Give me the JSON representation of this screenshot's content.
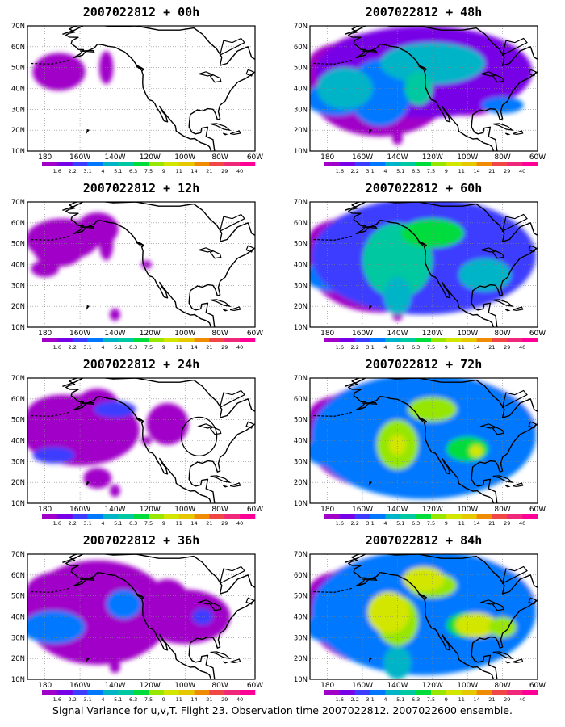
{
  "figure": {
    "caption": "Signal Variance for u,v,T. Flight 23. Observation time 2007022812. 2007022600 ensemble."
  },
  "map_axes": {
    "lat_labels": [
      "70N",
      "60N",
      "50N",
      "40N",
      "30N",
      "20N",
      "10N"
    ],
    "lon_labels": [
      "180",
      "160W",
      "140W",
      "120W",
      "100W",
      "80W",
      "60W"
    ]
  },
  "colorbar": {
    "levels": [
      "1.6",
      "2.2",
      "3.1",
      "4",
      "5.1",
      "6.3",
      "7.5",
      "9",
      "11",
      "14",
      "21",
      "29",
      "40"
    ],
    "colors": [
      "#a000c8",
      "#7800e6",
      "#3c3cff",
      "#0078ff",
      "#00b4c8",
      "#00c8a0",
      "#00dc3c",
      "#96e600",
      "#d2e600",
      "#e6c800",
      "#f08c00",
      "#f04646",
      "#f0287a",
      "#ff0096"
    ]
  },
  "panels": [
    {
      "title": "2007022812 + 00h",
      "lead_hours": 0,
      "coverage": 1
    },
    {
      "title": "2007022812 + 12h",
      "lead_hours": 12,
      "coverage": 2
    },
    {
      "title": "2007022812 + 24h",
      "lead_hours": 24,
      "coverage": 3
    },
    {
      "title": "2007022812 + 36h",
      "lead_hours": 36,
      "coverage": 4
    },
    {
      "title": "2007022812 + 48h",
      "lead_hours": 48,
      "coverage": 5
    },
    {
      "title": "2007022812 + 60h",
      "lead_hours": 60,
      "coverage": 6
    },
    {
      "title": "2007022812 + 72h",
      "lead_hours": 72,
      "coverage": 7
    },
    {
      "title": "2007022812 + 84h",
      "lead_hours": 84,
      "coverage": 8
    }
  ]
}
